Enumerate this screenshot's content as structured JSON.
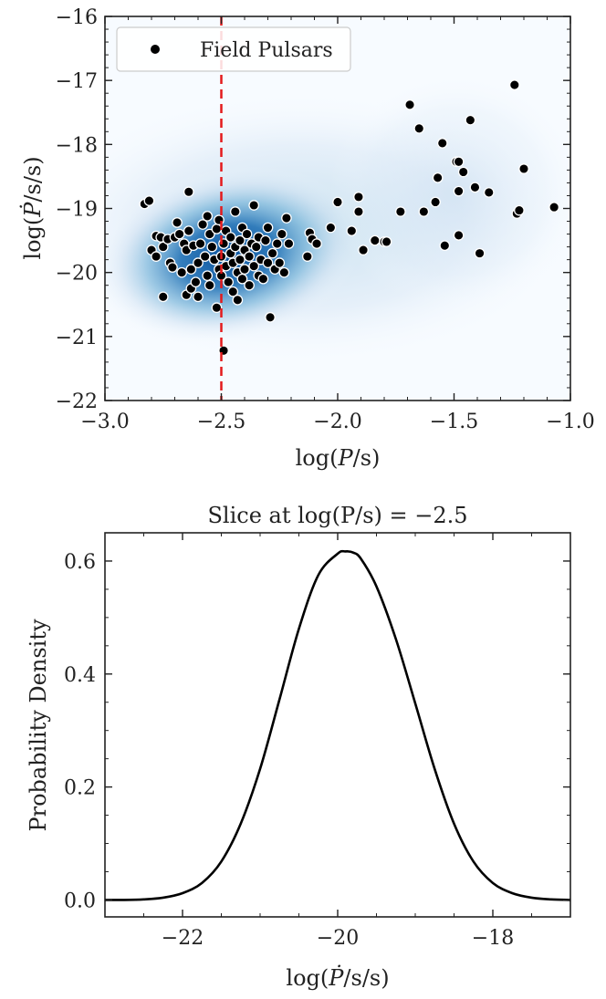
{
  "chart_data": [
    {
      "type": "scatter",
      "title": "",
      "xlabel": "log(P/s)",
      "ylabel": "log(Ṗ/s/s)",
      "xlim": [
        -3.0,
        -1.0
      ],
      "ylim": [
        -22,
        -16
      ],
      "xticks": [
        -3.0,
        -2.5,
        -2.0,
        -1.5,
        -1.0
      ],
      "xtick_labels": [
        "−3.0",
        "−2.5",
        "−2.0",
        "−1.5",
        "−1.0"
      ],
      "yticks": [
        -22,
        -21,
        -20,
        -19,
        -18,
        -17,
        -16
      ],
      "ytick_labels": [
        "−22",
        "−21",
        "−20",
        "−19",
        "−18",
        "−17",
        "−16"
      ],
      "legend": {
        "label": "Field Pulsars",
        "loc": "top-left"
      },
      "vline": {
        "x": -2.5,
        "color": "#e41a1c",
        "style": "dashed"
      },
      "background": "kde-density (blue)",
      "colors": {
        "density": "#08519c",
        "points": "#000000",
        "vline": "#e41a1c"
      },
      "series": [
        {
          "name": "Field Pulsars",
          "points": [
            [
              -2.83,
              -18.93
            ],
            [
              -2.81,
              -18.88
            ],
            [
              -2.8,
              -19.65
            ],
            [
              -2.78,
              -19.43
            ],
            [
              -2.78,
              -19.75
            ],
            [
              -2.76,
              -19.45
            ],
            [
              -2.75,
              -20.38
            ],
            [
              -2.75,
              -19.6
            ],
            [
              -2.73,
              -19.48
            ],
            [
              -2.72,
              -19.85
            ],
            [
              -2.71,
              -19.92
            ],
            [
              -2.7,
              -19.45
            ],
            [
              -2.69,
              -19.22
            ],
            [
              -2.68,
              -19.4
            ],
            [
              -2.67,
              -20.0
            ],
            [
              -2.66,
              -19.55
            ],
            [
              -2.65,
              -19.65
            ],
            [
              -2.65,
              -20.35
            ],
            [
              -2.64,
              -18.74
            ],
            [
              -2.64,
              -19.35
            ],
            [
              -2.63,
              -19.95
            ],
            [
              -2.63,
              -20.25
            ],
            [
              -2.62,
              -19.58
            ],
            [
              -2.61,
              -20.15
            ],
            [
              -2.6,
              -19.85
            ],
            [
              -2.6,
              -20.38
            ],
            [
              -2.59,
              -19.55
            ],
            [
              -2.58,
              -19.25
            ],
            [
              -2.57,
              -19.75
            ],
            [
              -2.56,
              -20.05
            ],
            [
              -2.56,
              -19.12
            ],
            [
              -2.55,
              -19.4
            ],
            [
              -2.55,
              -20.2
            ],
            [
              -2.54,
              -19.6
            ],
            [
              -2.53,
              -19.8
            ],
            [
              -2.52,
              -19.32
            ],
            [
              -2.52,
              -20.55
            ],
            [
              -2.51,
              -19.95
            ],
            [
              -2.51,
              -19.18
            ],
            [
              -2.5,
              -19.75
            ],
            [
              -2.5,
              -20.05
            ],
            [
              -2.49,
              -21.22
            ],
            [
              -2.49,
              -19.55
            ],
            [
              -2.48,
              -19.9
            ],
            [
              -2.48,
              -19.35
            ],
            [
              -2.47,
              -20.15
            ],
            [
              -2.46,
              -19.7
            ],
            [
              -2.46,
              -19.45
            ],
            [
              -2.45,
              -19.85
            ],
            [
              -2.45,
              -20.3
            ],
            [
              -2.44,
              -19.05
            ],
            [
              -2.44,
              -19.6
            ],
            [
              -2.43,
              -20.0
            ],
            [
              -2.43,
              -20.43
            ],
            [
              -2.42,
              -19.5
            ],
            [
              -2.42,
              -19.8
            ],
            [
              -2.41,
              -19.3
            ],
            [
              -2.41,
              -20.1
            ],
            [
              -2.4,
              -19.65
            ],
            [
              -2.4,
              -19.95
            ],
            [
              -2.39,
              -19.4
            ],
            [
              -2.38,
              -19.75
            ],
            [
              -2.38,
              -20.2
            ],
            [
              -2.37,
              -19.55
            ],
            [
              -2.36,
              -19.9
            ],
            [
              -2.36,
              -18.95
            ],
            [
              -2.35,
              -19.6
            ],
            [
              -2.34,
              -20.05
            ],
            [
              -2.34,
              -19.45
            ],
            [
              -2.33,
              -19.8
            ],
            [
              -2.32,
              -20.1
            ],
            [
              -2.31,
              -19.5
            ],
            [
              -2.3,
              -19.85
            ],
            [
              -2.3,
              -19.3
            ],
            [
              -2.29,
              -20.7
            ],
            [
              -2.28,
              -19.7
            ],
            [
              -2.27,
              -19.95
            ],
            [
              -2.26,
              -19.55
            ],
            [
              -2.25,
              -19.85
            ],
            [
              -2.24,
              -19.4
            ],
            [
              -2.23,
              -20.0
            ],
            [
              -2.22,
              -19.15
            ],
            [
              -2.21,
              -19.55
            ],
            [
              -2.13,
              -19.75
            ],
            [
              -2.12,
              -19.38
            ],
            [
              -2.11,
              -19.48
            ],
            [
              -2.09,
              -19.55
            ],
            [
              -2.03,
              -19.3
            ],
            [
              -2.0,
              -18.9
            ],
            [
              -1.94,
              -19.35
            ],
            [
              -1.91,
              -18.82
            ],
            [
              -1.91,
              -19.05
            ],
            [
              -1.89,
              -19.65
            ],
            [
              -1.84,
              -19.5
            ],
            [
              -1.8,
              -19.52
            ],
            [
              -1.79,
              -19.52
            ],
            [
              -1.73,
              -19.05
            ],
            [
              -1.69,
              -17.38
            ],
            [
              -1.65,
              -17.75
            ],
            [
              -1.63,
              -19.05
            ],
            [
              -1.58,
              -18.9
            ],
            [
              -1.57,
              -18.52
            ],
            [
              -1.55,
              -17.98
            ],
            [
              -1.54,
              -19.58
            ],
            [
              -1.49,
              -18.27
            ],
            [
              -1.48,
              -18.27
            ],
            [
              -1.48,
              -18.73
            ],
            [
              -1.48,
              -19.42
            ],
            [
              -1.46,
              -18.43
            ],
            [
              -1.43,
              -17.62
            ],
            [
              -1.41,
              -18.67
            ],
            [
              -1.39,
              -19.7
            ],
            [
              -1.35,
              -18.75
            ],
            [
              -1.24,
              -17.07
            ],
            [
              -1.23,
              -19.08
            ],
            [
              -1.22,
              -19.03
            ],
            [
              -1.2,
              -18.38
            ],
            [
              -1.07,
              -18.98
            ]
          ]
        }
      ]
    },
    {
      "type": "line",
      "title": "Slice at log(P/s) = −2.5",
      "xlabel": "log(Ṗ/s/s)",
      "ylabel": "Probability Density",
      "xlim": [
        -23,
        -17
      ],
      "ylim": [
        -0.03,
        0.65
      ],
      "xticks": [
        -22,
        -20,
        -18
      ],
      "xtick_labels": [
        "−22",
        "−20",
        "−18"
      ],
      "yticks": [
        0.0,
        0.2,
        0.4,
        0.6
      ],
      "ytick_labels": [
        "0.0",
        "0.2",
        "0.4",
        "0.6"
      ],
      "series": [
        {
          "name": "density",
          "x": [
            -23.0,
            -22.75,
            -22.5,
            -22.25,
            -22.0,
            -21.75,
            -21.5,
            -21.25,
            -21.0,
            -20.75,
            -20.5,
            -20.25,
            -20.0,
            -19.9,
            -19.8,
            -19.7,
            -19.5,
            -19.25,
            -19.0,
            -18.75,
            -18.5,
            -18.25,
            -18.0,
            -17.75,
            -17.5,
            -17.25,
            -17.0
          ],
          "y": [
            0.0,
            0.0,
            0.001,
            0.004,
            0.012,
            0.03,
            0.068,
            0.135,
            0.232,
            0.355,
            0.48,
            0.575,
            0.613,
            0.617,
            0.615,
            0.604,
            0.555,
            0.462,
            0.348,
            0.232,
            0.135,
            0.068,
            0.03,
            0.012,
            0.004,
            0.001,
            0.0
          ]
        }
      ]
    }
  ]
}
